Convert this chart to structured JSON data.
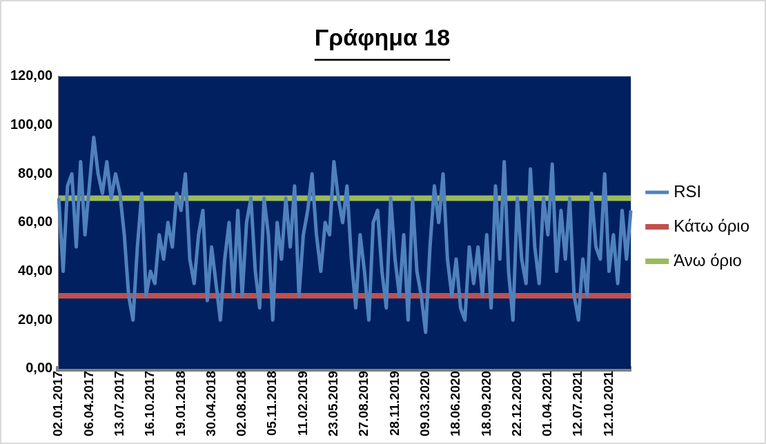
{
  "chart_data": {
    "type": "line",
    "title": "Γράφημα 18",
    "categories": [
      "02.01.2017",
      null,
      null,
      null,
      null,
      null,
      null,
      "06.04.2017",
      null,
      null,
      null,
      null,
      null,
      null,
      "13.07.2017",
      null,
      null,
      null,
      null,
      null,
      null,
      "16.10.2017",
      null,
      null,
      null,
      null,
      null,
      null,
      "19.01.2018",
      null,
      null,
      null,
      null,
      null,
      null,
      "30.04.2018",
      null,
      null,
      null,
      null,
      null,
      null,
      "02.08.2018",
      null,
      null,
      null,
      null,
      null,
      null,
      "05.11.2018",
      null,
      null,
      null,
      null,
      null,
      null,
      "11.02.2019",
      null,
      null,
      null,
      null,
      null,
      null,
      "23.05.2019",
      null,
      null,
      null,
      null,
      null,
      null,
      "27.08.2019",
      null,
      null,
      null,
      null,
      null,
      null,
      "28.11.2019",
      null,
      null,
      null,
      null,
      null,
      null,
      "09.03.2020",
      null,
      null,
      null,
      null,
      null,
      null,
      "18.06.2020",
      null,
      null,
      null,
      null,
      null,
      null,
      "18.09.2020",
      null,
      null,
      null,
      null,
      null,
      null,
      "22.12.2020",
      null,
      null,
      null,
      null,
      null,
      null,
      "01.04.2021",
      null,
      null,
      null,
      null,
      null,
      null,
      "12.07.2021",
      null,
      null,
      null,
      null,
      null,
      null,
      "12.10.2021",
      null,
      null,
      null,
      null,
      null
    ],
    "series": [
      {
        "name": "RSI",
        "color": "#4f81bd",
        "values": [
          70,
          40,
          75,
          80,
          50,
          85,
          55,
          75,
          95,
          80,
          72,
          85,
          70,
          80,
          72,
          55,
          30,
          20,
          50,
          72,
          30,
          40,
          35,
          55,
          45,
          60,
          50,
          72,
          65,
          80,
          45,
          35,
          55,
          65,
          28,
          50,
          35,
          20,
          45,
          60,
          30,
          65,
          30,
          60,
          70,
          40,
          25,
          70,
          55,
          20,
          60,
          45,
          70,
          50,
          75,
          30,
          55,
          65,
          80,
          55,
          40,
          60,
          55,
          85,
          70,
          60,
          75,
          45,
          25,
          55,
          40,
          20,
          60,
          65,
          40,
          25,
          70,
          45,
          30,
          55,
          20,
          70,
          40,
          30,
          15,
          50,
          75,
          60,
          80,
          45,
          30,
          45,
          25,
          20,
          50,
          35,
          50,
          30,
          55,
          25,
          75,
          45,
          85,
          40,
          20,
          70,
          45,
          35,
          82,
          50,
          35,
          70,
          55,
          84,
          40,
          65,
          45,
          70,
          30,
          20,
          45,
          30,
          72,
          50,
          45,
          80,
          40,
          55,
          35,
          65,
          45,
          65
        ]
      },
      {
        "name": "Κάτω όριο",
        "color": "#c0504d",
        "values": [
          30,
          30,
          30,
          30,
          30,
          30,
          30,
          30,
          30,
          30,
          30,
          30,
          30,
          30,
          30,
          30,
          30,
          30,
          30,
          30,
          30,
          30,
          30,
          30,
          30,
          30,
          30,
          30,
          30,
          30,
          30,
          30,
          30,
          30,
          30,
          30,
          30,
          30,
          30,
          30,
          30,
          30,
          30,
          30,
          30,
          30,
          30,
          30,
          30,
          30,
          30,
          30,
          30,
          30,
          30,
          30,
          30,
          30,
          30,
          30,
          30,
          30,
          30,
          30,
          30,
          30,
          30,
          30,
          30,
          30,
          30,
          30,
          30,
          30,
          30,
          30,
          30,
          30,
          30,
          30,
          30,
          30,
          30,
          30,
          30,
          30,
          30,
          30,
          30,
          30,
          30,
          30,
          30,
          30,
          30,
          30,
          30,
          30,
          30,
          30,
          30,
          30,
          30,
          30,
          30,
          30,
          30,
          30,
          30,
          30,
          30,
          30,
          30,
          30,
          30,
          30,
          30,
          30,
          30,
          30,
          30,
          30,
          30,
          30,
          30,
          30,
          30,
          30,
          30,
          30,
          30,
          30
        ]
      },
      {
        "name": "Άνω όριο",
        "color": "#9bbb59",
        "values": [
          70,
          70,
          70,
          70,
          70,
          70,
          70,
          70,
          70,
          70,
          70,
          70,
          70,
          70,
          70,
          70,
          70,
          70,
          70,
          70,
          70,
          70,
          70,
          70,
          70,
          70,
          70,
          70,
          70,
          70,
          70,
          70,
          70,
          70,
          70,
          70,
          70,
          70,
          70,
          70,
          70,
          70,
          70,
          70,
          70,
          70,
          70,
          70,
          70,
          70,
          70,
          70,
          70,
          70,
          70,
          70,
          70,
          70,
          70,
          70,
          70,
          70,
          70,
          70,
          70,
          70,
          70,
          70,
          70,
          70,
          70,
          70,
          70,
          70,
          70,
          70,
          70,
          70,
          70,
          70,
          70,
          70,
          70,
          70,
          70,
          70,
          70,
          70,
          70,
          70,
          70,
          70,
          70,
          70,
          70,
          70,
          70,
          70,
          70,
          70,
          70,
          70,
          70,
          70,
          70,
          70,
          70,
          70,
          70,
          70,
          70,
          70,
          70,
          70,
          70,
          70,
          70,
          70,
          70,
          70,
          70,
          70,
          70,
          70,
          70,
          70,
          70,
          70,
          70,
          70,
          70,
          70
        ]
      }
    ],
    "ylim": [
      0,
      120
    ],
    "yticks": [
      {
        "value": 0,
        "label": "0,00"
      },
      {
        "value": 20,
        "label": "20,00"
      },
      {
        "value": 40,
        "label": "40,00"
      },
      {
        "value": 60,
        "label": "60,00"
      },
      {
        "value": 80,
        "label": "80,00"
      },
      {
        "value": 100,
        "label": "100,00"
      },
      {
        "value": 120,
        "label": "120,00"
      }
    ],
    "legend": "right",
    "marker": "none"
  }
}
